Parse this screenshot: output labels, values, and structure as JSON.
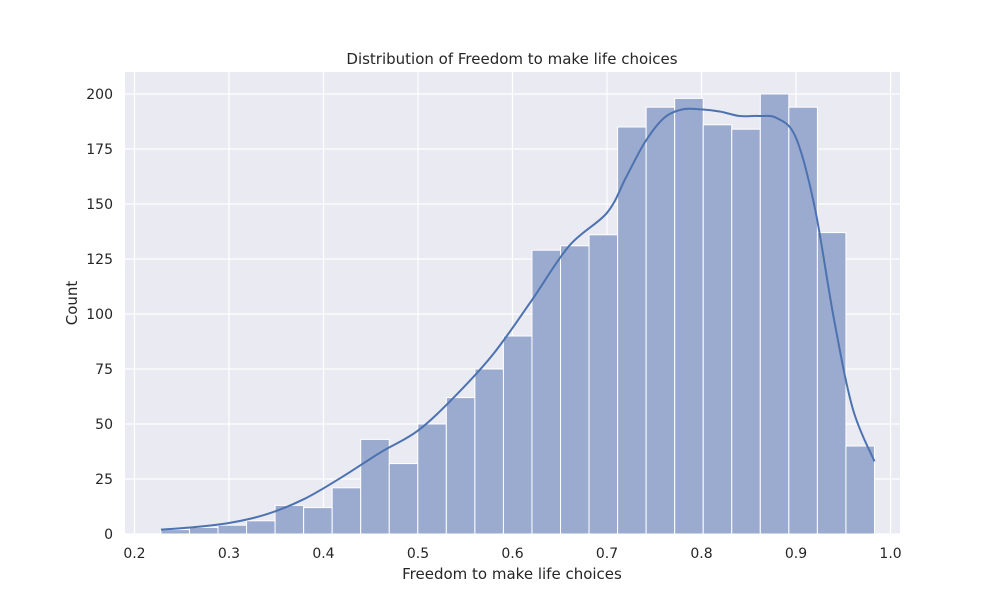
{
  "chart_data": {
    "type": "bar",
    "title": "Distribution of Freedom to make life choices",
    "xlabel": "Freedom to make life choices",
    "ylabel": "Count",
    "xlim": [
      0.19,
      1.01
    ],
    "ylim": [
      0,
      210
    ],
    "xticks": [
      0.2,
      0.3,
      0.4,
      0.5,
      0.6,
      0.7,
      0.8,
      0.9,
      1.0
    ],
    "xtick_labels": [
      "0.2",
      "0.3",
      "0.4",
      "0.5",
      "0.6",
      "0.7",
      "0.8",
      "0.9",
      "1.0"
    ],
    "yticks": [
      0,
      25,
      50,
      75,
      100,
      125,
      150,
      175,
      200
    ],
    "ytick_labels": [
      "0",
      "25",
      "50",
      "75",
      "100",
      "125",
      "150",
      "175",
      "200"
    ],
    "grid": true,
    "bin_edges": [
      0.228,
      0.2582,
      0.2884,
      0.3186,
      0.3488,
      0.379,
      0.4092,
      0.4394,
      0.4696,
      0.4998,
      0.53,
      0.5602,
      0.5904,
      0.6206,
      0.6508,
      0.681,
      0.7112,
      0.7414,
      0.7716,
      0.8018,
      0.832,
      0.8622,
      0.8924,
      0.9226,
      0.9528,
      0.983
    ],
    "counts": [
      2,
      3,
      4,
      6,
      13,
      12,
      21,
      43,
      32,
      50,
      62,
      75,
      90,
      129,
      131,
      136,
      185,
      194,
      198,
      186,
      184,
      200,
      194,
      137,
      40
    ],
    "kde": {
      "x": [
        0.228,
        0.26,
        0.3,
        0.34,
        0.38,
        0.42,
        0.46,
        0.5,
        0.54,
        0.58,
        0.62,
        0.66,
        0.7,
        0.72,
        0.74,
        0.76,
        0.78,
        0.8,
        0.82,
        0.84,
        0.86,
        0.88,
        0.9,
        0.92,
        0.94,
        0.96,
        0.983
      ],
      "y": [
        2,
        3,
        5,
        9,
        16,
        26,
        37,
        47,
        63,
        82,
        106,
        131,
        146,
        162,
        178,
        189,
        193,
        193,
        192,
        190,
        190,
        189,
        180,
        148,
        98,
        57,
        33
      ]
    },
    "colors": {
      "bar_fill": "#9aabcf",
      "bar_edge": "#ffffff",
      "kde_line": "#4c72b0",
      "plot_bg": "#eaeaf2",
      "grid": "#ffffff"
    }
  }
}
